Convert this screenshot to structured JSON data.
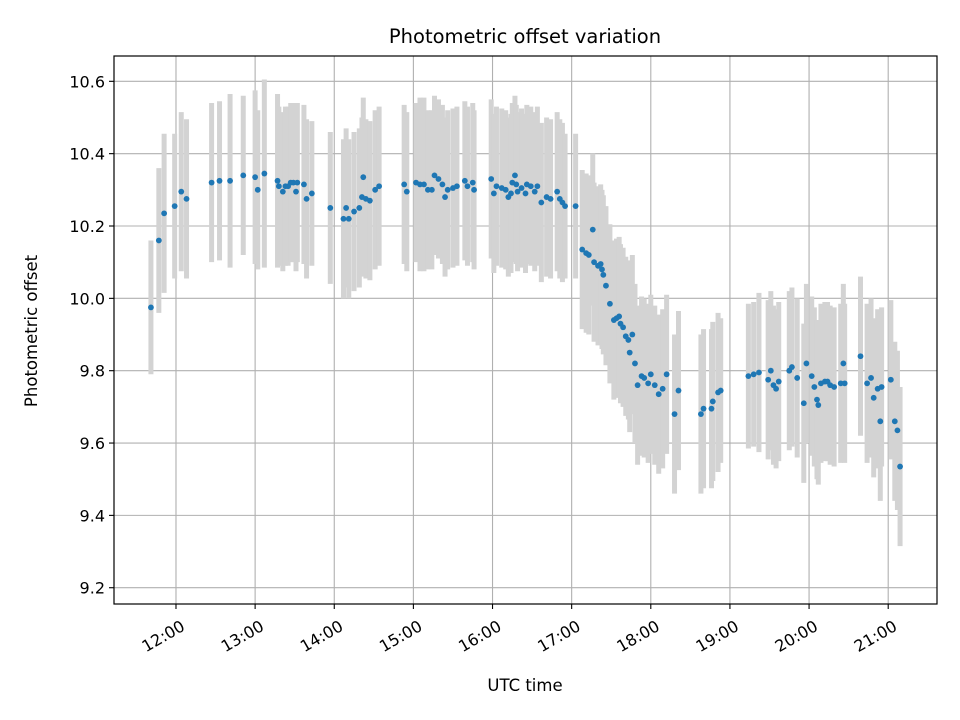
{
  "chart_data": {
    "type": "scatter",
    "title": "Photometric offset variation",
    "xlabel": "UTC time",
    "ylabel": "Photometric offset",
    "x_scale": "time",
    "xlim": [
      "11:13",
      "21:37"
    ],
    "ylim": [
      9.155,
      10.67
    ],
    "x_ticks": [
      "12:00",
      "13:00",
      "14:00",
      "15:00",
      "16:00",
      "17:00",
      "18:00",
      "19:00",
      "20:00",
      "21:00"
    ],
    "y_ticks": [
      "9.2",
      "9.4",
      "9.6",
      "9.8",
      "10.0",
      "10.2",
      "10.4",
      "10.6"
    ],
    "grid": true,
    "marker_color": "#1f77b4",
    "errorbar_color": "#d3d3d3",
    "points": [
      [
        "11:41",
        9.975,
        0.185
      ],
      [
        "11:47",
        10.16,
        0.2
      ],
      [
        "11:51",
        10.235,
        0.22
      ],
      [
        "11:59",
        10.255,
        0.2
      ],
      [
        "12:04",
        10.295,
        0.22
      ],
      [
        "12:08",
        10.275,
        0.22
      ],
      [
        "12:27",
        10.32,
        0.22
      ],
      [
        "12:33",
        10.325,
        0.22
      ],
      [
        "12:41",
        10.325,
        0.24
      ],
      [
        "12:51",
        10.34,
        0.22
      ],
      [
        "13:00",
        10.335,
        0.24
      ],
      [
        "13:02",
        10.3,
        0.22
      ],
      [
        "13:07",
        10.345,
        0.26
      ],
      [
        "13:17",
        10.325,
        0.24
      ],
      [
        "13:18",
        10.31,
        0.22
      ],
      [
        "13:21",
        10.295,
        0.22
      ],
      [
        "13:23",
        10.31,
        0.22
      ],
      [
        "13:25",
        10.31,
        0.22
      ],
      [
        "13:27",
        10.32,
        0.22
      ],
      [
        "13:29",
        10.32,
        0.22
      ],
      [
        "13:32",
        10.32,
        0.22
      ],
      [
        "13:31",
        10.295,
        0.22
      ],
      [
        "13:37",
        10.315,
        0.22
      ],
      [
        "13:39",
        10.275,
        0.22
      ],
      [
        "13:43",
        10.29,
        0.2
      ],
      [
        "13:57",
        10.25,
        0.21
      ],
      [
        "14:07",
        10.22,
        0.22
      ],
      [
        "14:09",
        10.25,
        0.22
      ],
      [
        "14:11",
        10.22,
        0.22
      ],
      [
        "14:15",
        10.24,
        0.22
      ],
      [
        "14:19",
        10.25,
        0.22
      ],
      [
        "14:21",
        10.28,
        0.22
      ],
      [
        "14:22",
        10.335,
        0.22
      ],
      [
        "14:24",
        10.275,
        0.22
      ],
      [
        "14:27",
        10.27,
        0.22
      ],
      [
        "14:31",
        10.3,
        0.22
      ],
      [
        "14:34",
        10.31,
        0.22
      ],
      [
        "14:53",
        10.315,
        0.22
      ],
      [
        "14:55",
        10.295,
        0.22
      ],
      [
        "15:02",
        10.32,
        0.22
      ],
      [
        "15:05",
        10.315,
        0.24
      ],
      [
        "15:08",
        10.315,
        0.24
      ],
      [
        "15:11",
        10.3,
        0.22
      ],
      [
        "15:14",
        10.3,
        0.22
      ],
      [
        "15:16",
        10.34,
        0.22
      ],
      [
        "15:19",
        10.33,
        0.22
      ],
      [
        "15:22",
        10.315,
        0.22
      ],
      [
        "15:24",
        10.28,
        0.22
      ],
      [
        "15:26",
        10.3,
        0.22
      ],
      [
        "15:30",
        10.305,
        0.22
      ],
      [
        "15:33",
        10.31,
        0.22
      ],
      [
        "15:39",
        10.325,
        0.22
      ],
      [
        "15:41",
        10.31,
        0.22
      ],
      [
        "15:45",
        10.32,
        0.22
      ],
      [
        "15:46",
        10.3,
        0.22
      ],
      [
        "15:59",
        10.33,
        0.22
      ],
      [
        "16:01",
        10.29,
        0.22
      ],
      [
        "16:03",
        10.31,
        0.22
      ],
      [
        "16:07",
        10.305,
        0.22
      ],
      [
        "16:10",
        10.3,
        0.22
      ],
      [
        "16:12",
        10.28,
        0.22
      ],
      [
        "16:14",
        10.29,
        0.22
      ],
      [
        "16:15",
        10.32,
        0.22
      ],
      [
        "16:17",
        10.34,
        0.22
      ],
      [
        "16:18",
        10.315,
        0.22
      ],
      [
        "16:19",
        10.295,
        0.22
      ],
      [
        "16:22",
        10.305,
        0.22
      ],
      [
        "16:25",
        10.29,
        0.22
      ],
      [
        "16:26",
        10.315,
        0.22
      ],
      [
        "16:29",
        10.31,
        0.22
      ],
      [
        "16:32",
        10.295,
        0.22
      ],
      [
        "16:34",
        10.31,
        0.22
      ],
      [
        "16:37",
        10.265,
        0.22
      ],
      [
        "16:41",
        10.28,
        0.22
      ],
      [
        "16:44",
        10.275,
        0.22
      ],
      [
        "16:49",
        10.295,
        0.22
      ],
      [
        "16:51",
        10.275,
        0.22
      ],
      [
        "16:53",
        10.265,
        0.22
      ],
      [
        "16:55",
        10.255,
        0.2
      ],
      [
        "17:03",
        10.255,
        0.2
      ],
      [
        "17:08",
        10.135,
        0.22
      ],
      [
        "17:11",
        10.125,
        0.22
      ],
      [
        "17:13",
        10.12,
        0.22
      ],
      [
        "17:16",
        10.19,
        0.21
      ],
      [
        "17:17",
        10.1,
        0.22
      ],
      [
        "17:20",
        10.09,
        0.22
      ],
      [
        "17:22",
        10.095,
        0.22
      ],
      [
        "17:23",
        10.08,
        0.22
      ],
      [
        "17:24",
        10.065,
        0.22
      ],
      [
        "17:26",
        10.035,
        0.22
      ],
      [
        "17:29",
        9.985,
        0.22
      ],
      [
        "17:32",
        9.94,
        0.22
      ],
      [
        "17:34",
        9.945,
        0.22
      ],
      [
        "17:36",
        9.95,
        0.22
      ],
      [
        "17:37",
        9.93,
        0.22
      ],
      [
        "17:39",
        9.92,
        0.22
      ],
      [
        "17:41",
        9.895,
        0.22
      ],
      [
        "17:43",
        9.885,
        0.22
      ],
      [
        "17:44",
        9.85,
        0.22
      ],
      [
        "17:46",
        9.9,
        0.22
      ],
      [
        "17:48",
        9.82,
        0.22
      ],
      [
        "17:50",
        9.76,
        0.22
      ],
      [
        "17:53",
        9.785,
        0.22
      ],
      [
        "17:55",
        9.78,
        0.22
      ],
      [
        "17:58",
        9.765,
        0.22
      ],
      [
        "18:00",
        9.79,
        0.22
      ],
      [
        "18:03",
        9.76,
        0.22
      ],
      [
        "18:06",
        9.735,
        0.22
      ],
      [
        "18:09",
        9.75,
        0.22
      ],
      [
        "18:12",
        9.79,
        0.22
      ],
      [
        "18:18",
        9.68,
        0.22
      ],
      [
        "18:21",
        9.745,
        0.22
      ],
      [
        "18:38",
        9.68,
        0.22
      ],
      [
        "18:40",
        9.695,
        0.22
      ],
      [
        "18:46",
        9.695,
        0.22
      ],
      [
        "18:47",
        9.715,
        0.22
      ],
      [
        "18:51",
        9.74,
        0.22
      ],
      [
        "18:53",
        9.745,
        0.2
      ],
      [
        "19:14",
        9.785,
        0.2
      ],
      [
        "19:18",
        9.79,
        0.2
      ],
      [
        "19:22",
        9.795,
        0.22
      ],
      [
        "19:29",
        9.775,
        0.22
      ],
      [
        "19:31",
        9.8,
        0.22
      ],
      [
        "19:33",
        9.76,
        0.22
      ],
      [
        "19:35",
        9.75,
        0.22
      ],
      [
        "19:37",
        9.77,
        0.22
      ],
      [
        "19:45",
        9.8,
        0.22
      ],
      [
        "19:47",
        9.81,
        0.22
      ],
      [
        "19:51",
        9.78,
        0.22
      ],
      [
        "19:56",
        9.71,
        0.22
      ],
      [
        "19:58",
        9.82,
        0.22
      ],
      [
        "20:02",
        9.785,
        0.22
      ],
      [
        "20:04",
        9.755,
        0.22
      ],
      [
        "20:06",
        9.72,
        0.22
      ],
      [
        "20:07",
        9.705,
        0.22
      ],
      [
        "20:09",
        9.765,
        0.22
      ],
      [
        "20:12",
        9.77,
        0.22
      ],
      [
        "20:14",
        9.77,
        0.22
      ],
      [
        "20:16",
        9.76,
        0.22
      ],
      [
        "20:19",
        9.755,
        0.22
      ],
      [
        "20:24",
        9.765,
        0.22
      ],
      [
        "20:26",
        9.82,
        0.22
      ],
      [
        "20:27",
        9.765,
        0.22
      ],
      [
        "20:39",
        9.84,
        0.22
      ],
      [
        "20:44",
        9.765,
        0.22
      ],
      [
        "20:47",
        9.78,
        0.22
      ],
      [
        "20:49",
        9.725,
        0.22
      ],
      [
        "20:52",
        9.75,
        0.22
      ],
      [
        "20:54",
        9.66,
        0.22
      ],
      [
        "20:55",
        9.755,
        0.22
      ],
      [
        "21:02",
        9.775,
        0.22
      ],
      [
        "21:05",
        9.66,
        0.22
      ],
      [
        "21:07",
        9.635,
        0.22
      ],
      [
        "21:09",
        9.535,
        0.22
      ]
    ]
  }
}
